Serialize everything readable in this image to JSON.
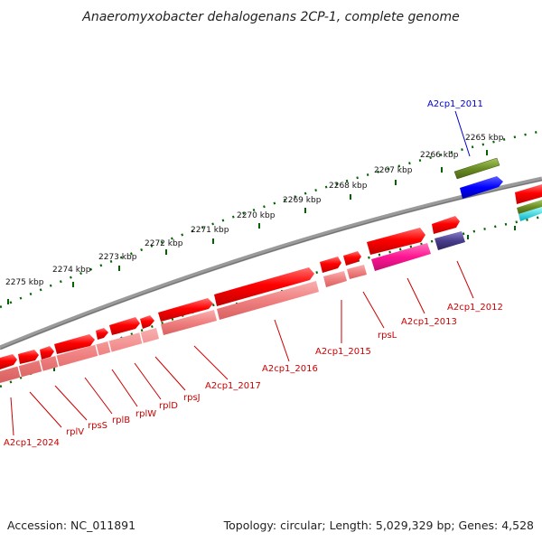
{
  "title": "Anaeromyxobacter dehalogenans 2CP-1, complete genome",
  "footer": {
    "accession": "Accession: NC_011891",
    "summary": "Topology: circular; Length: 5,029,329 bp; Genes: 4,528"
  },
  "ticks": [
    "2265 kbp",
    "2266 kbp",
    "2267 kbp",
    "2268 kbp",
    "2269 kbp",
    "2270 kbp",
    "2271 kbp",
    "2272 kbp",
    "2273 kbp",
    "2274 kbp",
    "2275 kbp"
  ],
  "genes": {
    "A2cp1_2011": "A2cp1_2011",
    "A2cp1_2012": "A2cp1_2012",
    "A2cp1_2013": "A2cp1_2013",
    "rpsL": "rpsL",
    "A2cp1_2015": "A2cp1_2015",
    "A2cp1_2016": "A2cp1_2016",
    "A2cp1_2017": "A2cp1_2017",
    "rpsJ": "rpsJ",
    "rplD": "rplD",
    "rplW": "rplW",
    "rplB": "rplB",
    "rpsS": "rpsS",
    "rplV": "rplV",
    "A2cp1_2024": "A2cp1_2024"
  },
  "colors": {
    "forward_cds": "#ff0000",
    "reverse_cds_row": "#f08080",
    "magenta_feature": "#ff1493",
    "navy_feature": "#483d8b",
    "olive_feature": "#6b8e23",
    "blue_feature": "#0000ff",
    "backbone": "#808080",
    "tick_green": "#008000"
  }
}
